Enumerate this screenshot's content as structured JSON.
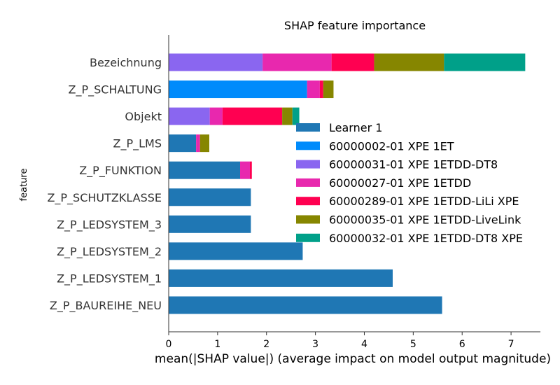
{
  "chart_data": {
    "type": "bar",
    "orientation": "horizontal",
    "stacked": true,
    "title": "SHAP feature importance",
    "xlabel": "mean(|SHAP value|) (average impact on model output magnitude)",
    "ylabel": "feature",
    "xlim": [
      0,
      7.6
    ],
    "xticks": [
      0,
      1,
      2,
      3,
      4,
      5,
      6,
      7
    ],
    "grid": false,
    "legend_position": "center-right",
    "categories": [
      "Bezeichnung",
      "Z_P_SCHALTUNG",
      "Objekt",
      "Z_P_LMS",
      "Z_P_FUNKTION",
      "Z_P_SCHUTZKLASSE",
      "Z_P_LEDSYSTEM_3",
      "Z_P_LEDSYSTEM_2",
      "Z_P_LEDSYSTEM_1",
      "Z_P_BAUREIHE_NEU"
    ],
    "series": [
      {
        "name": "Learner 1",
        "color": "#1f77b4",
        "values": [
          0,
          0,
          0,
          0.56,
          1.46,
          1.68,
          1.68,
          2.74,
          4.58,
          5.59
        ]
      },
      {
        "name": "60000002-01 XPE 1ET",
        "color": "#008bfb",
        "values": [
          0,
          2.83,
          0,
          0,
          0,
          0,
          0,
          0,
          0,
          0
        ]
      },
      {
        "name": "60000031-01 XPE 1ETDD-DT8",
        "color": "#8a66f0",
        "values": [
          1.92,
          0,
          0.84,
          0,
          0,
          0,
          0,
          0,
          0,
          0
        ]
      },
      {
        "name": "60000027-01 XPE 1ETDD",
        "color": "#e828ae",
        "values": [
          1.41,
          0.26,
          0.26,
          0.08,
          0.2,
          0,
          0,
          0,
          0,
          0
        ]
      },
      {
        "name": "60000289-01 XPE 1ETDD-LiLi XPE",
        "color": "#ff0051",
        "values": [
          0.87,
          0.07,
          1.22,
          0,
          0.04,
          0,
          0,
          0,
          0,
          0
        ]
      },
      {
        "name": "60000035-01 XPE 1ETDD-LiveLink",
        "color": "#868600",
        "values": [
          1.43,
          0.21,
          0.21,
          0.19,
          0,
          0,
          0,
          0,
          0,
          0
        ]
      },
      {
        "name": "60000032-01 XPE 1ETDD-DT8 XPE",
        "color": "#00a089",
        "values": [
          1.66,
          0,
          0.14,
          0,
          0,
          0,
          0,
          0,
          0,
          0
        ]
      }
    ]
  }
}
